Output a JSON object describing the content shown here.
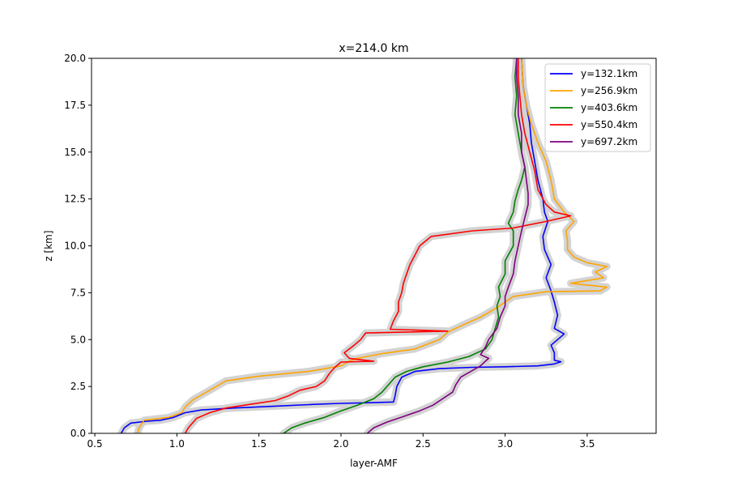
{
  "chart_data": {
    "type": "line",
    "title": "x=214.0 km",
    "xlabel": "layer-AMF",
    "ylabel": "z [km]",
    "xlim": [
      0.48,
      3.92
    ],
    "ylim": [
      0,
      20
    ],
    "xticks": [
      0.5,
      1.0,
      1.5,
      2.0,
      2.5,
      3.0,
      3.5
    ],
    "xtick_labels": [
      "0.5",
      "1.0",
      "1.5",
      "2.0",
      "2.5",
      "3.0",
      "3.5"
    ],
    "yticks": [
      0,
      2.5,
      5,
      7.5,
      10,
      12.5,
      15,
      17.5,
      20
    ],
    "ytick_labels": [
      "0.0",
      "2.5",
      "5.0",
      "7.5",
      "10.0",
      "12.5",
      "15.0",
      "17.5",
      "20.0"
    ],
    "grid": false,
    "legend_position": "top-right",
    "band_color": "#d3d3d3",
    "series": [
      {
        "name": "y=132.1km",
        "color": "#0000ff",
        "points": [
          [
            0.66,
            0
          ],
          [
            0.68,
            0.3
          ],
          [
            0.72,
            0.55
          ],
          [
            0.82,
            0.65
          ],
          [
            0.9,
            0.7
          ],
          [
            0.98,
            0.85
          ],
          [
            1.05,
            1.1
          ],
          [
            1.15,
            1.25
          ],
          [
            1.35,
            1.35
          ],
          [
            1.6,
            1.45
          ],
          [
            1.85,
            1.55
          ],
          [
            2.0,
            1.6
          ],
          [
            2.15,
            1.63
          ],
          [
            2.32,
            1.67
          ],
          [
            2.33,
            2.0
          ],
          [
            2.34,
            2.5
          ],
          [
            2.37,
            3.0
          ],
          [
            2.45,
            3.3
          ],
          [
            2.6,
            3.45
          ],
          [
            2.8,
            3.52
          ],
          [
            3.0,
            3.55
          ],
          [
            3.2,
            3.6
          ],
          [
            3.3,
            3.7
          ],
          [
            3.34,
            3.82
          ],
          [
            3.3,
            3.9
          ],
          [
            3.3,
            4.3
          ],
          [
            3.28,
            4.7
          ],
          [
            3.36,
            5.3
          ],
          [
            3.3,
            5.6
          ],
          [
            3.32,
            6.3
          ],
          [
            3.3,
            7.0
          ],
          [
            3.28,
            7.6
          ],
          [
            3.25,
            8.3
          ],
          [
            3.28,
            9.0
          ],
          [
            3.24,
            9.8
          ],
          [
            3.23,
            10.5
          ],
          [
            3.26,
            11.3
          ],
          [
            3.24,
            11.8
          ],
          [
            3.23,
            12.5
          ],
          [
            3.2,
            13.5
          ],
          [
            3.18,
            14.5
          ],
          [
            3.16,
            15.5
          ],
          [
            3.15,
            16.5
          ],
          [
            3.13,
            17.5
          ],
          [
            3.11,
            18.5
          ],
          [
            3.1,
            20
          ]
        ]
      },
      {
        "name": "y=256.9km",
        "color": "#ffa500",
        "points": [
          [
            0.76,
            0
          ],
          [
            0.77,
            0.3
          ],
          [
            0.8,
            0.7
          ],
          [
            0.95,
            0.85
          ],
          [
            1.03,
            1.1
          ],
          [
            1.05,
            1.4
          ],
          [
            1.1,
            1.8
          ],
          [
            1.2,
            2.3
          ],
          [
            1.3,
            2.8
          ],
          [
            1.5,
            3.05
          ],
          [
            1.8,
            3.3
          ],
          [
            2.0,
            3.6
          ],
          [
            2.05,
            3.85
          ],
          [
            2.1,
            4.0
          ],
          [
            2.25,
            4.25
          ],
          [
            2.45,
            4.5
          ],
          [
            2.6,
            5.0
          ],
          [
            2.65,
            5.4
          ],
          [
            2.75,
            5.8
          ],
          [
            2.85,
            6.2
          ],
          [
            2.95,
            6.7
          ],
          [
            3.05,
            7.3
          ],
          [
            3.25,
            7.55
          ],
          [
            3.58,
            7.6
          ],
          [
            3.62,
            7.8
          ],
          [
            3.4,
            8.0
          ],
          [
            3.6,
            8.3
          ],
          [
            3.55,
            8.6
          ],
          [
            3.62,
            8.9
          ],
          [
            3.5,
            9.1
          ],
          [
            3.42,
            9.4
          ],
          [
            3.38,
            9.8
          ],
          [
            3.38,
            10.3
          ],
          [
            3.37,
            10.8
          ],
          [
            3.42,
            11.3
          ],
          [
            3.36,
            11.8
          ],
          [
            3.3,
            12.5
          ],
          [
            3.28,
            13.5
          ],
          [
            3.25,
            14.5
          ],
          [
            3.2,
            15.5
          ],
          [
            3.16,
            16.5
          ],
          [
            3.13,
            17.5
          ],
          [
            3.11,
            18.5
          ],
          [
            3.1,
            20
          ]
        ]
      },
      {
        "name": "y=403.6km",
        "color": "#008000",
        "points": [
          [
            1.65,
            0
          ],
          [
            1.7,
            0.3
          ],
          [
            1.78,
            0.55
          ],
          [
            1.9,
            0.85
          ],
          [
            2.0,
            1.2
          ],
          [
            2.1,
            1.5
          ],
          [
            2.2,
            1.85
          ],
          [
            2.25,
            2.2
          ],
          [
            2.3,
            2.7
          ],
          [
            2.33,
            3.0
          ],
          [
            2.4,
            3.3
          ],
          [
            2.5,
            3.55
          ],
          [
            2.65,
            3.8
          ],
          [
            2.78,
            4.1
          ],
          [
            2.88,
            4.5
          ],
          [
            2.92,
            5.0
          ],
          [
            2.94,
            5.6
          ],
          [
            2.96,
            6.2
          ],
          [
            2.95,
            6.8
          ],
          [
            2.97,
            7.3
          ],
          [
            2.96,
            7.8
          ],
          [
            3.0,
            8.5
          ],
          [
            3.0,
            9.2
          ],
          [
            3.05,
            10.0
          ],
          [
            3.05,
            10.8
          ],
          [
            3.02,
            11.2
          ],
          [
            3.05,
            11.8
          ],
          [
            3.06,
            12.4
          ],
          [
            3.08,
            13.0
          ],
          [
            3.1,
            13.5
          ],
          [
            3.12,
            14.2
          ],
          [
            3.1,
            15.0
          ],
          [
            3.08,
            16.0
          ],
          [
            3.06,
            17.0
          ],
          [
            3.07,
            18.0
          ],
          [
            3.06,
            19.0
          ],
          [
            3.07,
            20
          ]
        ]
      },
      {
        "name": "y=550.4km",
        "color": "#ff0000",
        "points": [
          [
            1.05,
            0
          ],
          [
            1.07,
            0.3
          ],
          [
            1.12,
            0.8
          ],
          [
            1.2,
            1.1
          ],
          [
            1.3,
            1.35
          ],
          [
            1.45,
            1.55
          ],
          [
            1.6,
            1.75
          ],
          [
            1.68,
            2.0
          ],
          [
            1.75,
            2.3
          ],
          [
            1.85,
            2.5
          ],
          [
            1.9,
            2.8
          ],
          [
            1.93,
            3.2
          ],
          [
            1.96,
            3.5
          ],
          [
            2.0,
            3.8
          ],
          [
            2.2,
            3.85
          ],
          [
            2.05,
            4.0
          ],
          [
            2.02,
            4.3
          ],
          [
            2.08,
            4.7
          ],
          [
            2.12,
            5.0
          ],
          [
            2.15,
            5.35
          ],
          [
            2.65,
            5.45
          ],
          [
            2.3,
            5.55
          ],
          [
            2.32,
            6.0
          ],
          [
            2.35,
            6.5
          ],
          [
            2.35,
            7.0
          ],
          [
            2.37,
            7.5
          ],
          [
            2.38,
            8.0
          ],
          [
            2.4,
            8.5
          ],
          [
            2.42,
            9.0
          ],
          [
            2.45,
            9.5
          ],
          [
            2.48,
            10.0
          ],
          [
            2.55,
            10.5
          ],
          [
            2.8,
            10.8
          ],
          [
            3.05,
            10.95
          ],
          [
            3.25,
            11.3
          ],
          [
            3.4,
            11.6
          ],
          [
            3.3,
            11.8
          ],
          [
            3.25,
            12.2
          ],
          [
            3.2,
            13.0
          ],
          [
            3.18,
            14.0
          ],
          [
            3.15,
            15.0
          ],
          [
            3.12,
            16.0
          ],
          [
            3.1,
            17.0
          ],
          [
            3.09,
            18.0
          ],
          [
            3.08,
            19.0
          ],
          [
            3.08,
            20
          ]
        ]
      },
      {
        "name": "y=697.2km",
        "color": "#800080",
        "points": [
          [
            2.16,
            0
          ],
          [
            2.2,
            0.3
          ],
          [
            2.28,
            0.6
          ],
          [
            2.38,
            0.9
          ],
          [
            2.48,
            1.2
          ],
          [
            2.56,
            1.5
          ],
          [
            2.62,
            1.85
          ],
          [
            2.68,
            2.2
          ],
          [
            2.7,
            2.6
          ],
          [
            2.73,
            3.0
          ],
          [
            2.8,
            3.35
          ],
          [
            2.85,
            3.6
          ],
          [
            2.88,
            3.85
          ],
          [
            2.9,
            4.0
          ],
          [
            2.85,
            4.2
          ],
          [
            2.88,
            4.6
          ],
          [
            2.9,
            5.0
          ],
          [
            2.95,
            5.6
          ],
          [
            2.97,
            6.2
          ],
          [
            3.0,
            6.8
          ],
          [
            3.0,
            7.3
          ],
          [
            3.02,
            7.8
          ],
          [
            3.05,
            8.5
          ],
          [
            3.06,
            9.2
          ],
          [
            3.08,
            10.0
          ],
          [
            3.1,
            10.8
          ],
          [
            3.12,
            11.5
          ],
          [
            3.14,
            12.2
          ],
          [
            3.14,
            12.8
          ],
          [
            3.13,
            13.5
          ],
          [
            3.12,
            14.2
          ],
          [
            3.1,
            15.0
          ],
          [
            3.1,
            16.0
          ],
          [
            3.08,
            17.0
          ],
          [
            3.08,
            18.0
          ],
          [
            3.07,
            19.0
          ],
          [
            3.07,
            20
          ]
        ]
      }
    ]
  }
}
